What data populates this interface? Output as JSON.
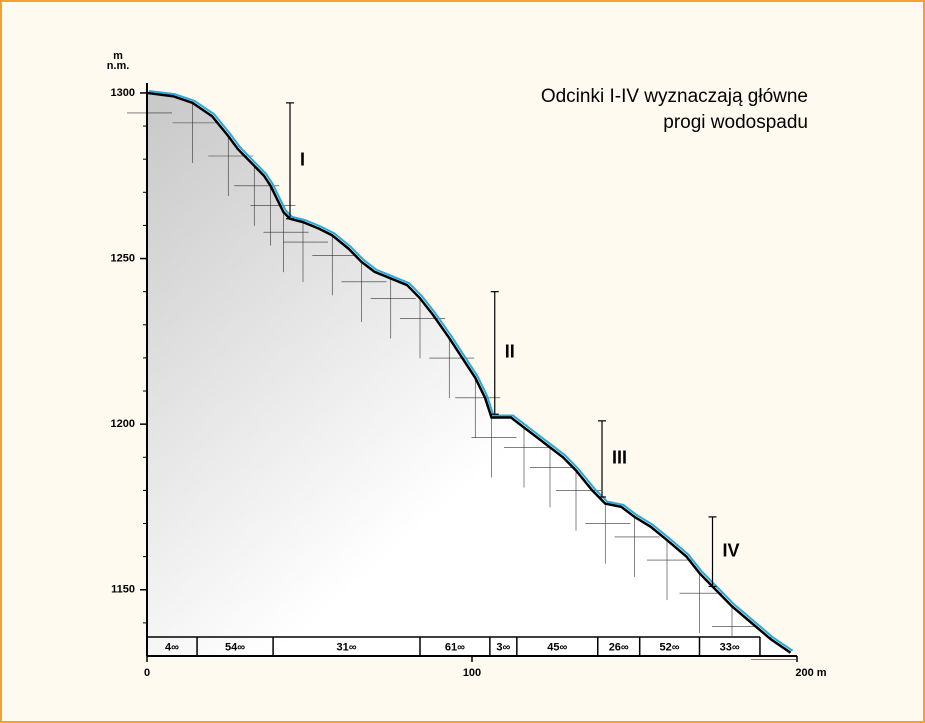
{
  "chart_data": {
    "type": "line",
    "annotation_lines": [
      "Odcinki I-IV wyznaczają główne",
      "progi wodospadu"
    ],
    "y_label_lines": [
      "m",
      "n.m."
    ],
    "x": [
      0,
      8,
      14,
      20,
      25,
      28,
      33,
      36,
      38,
      40,
      42,
      44,
      48,
      53,
      57,
      62,
      66,
      70,
      75,
      80,
      84,
      88,
      93,
      97,
      101,
      104,
      106,
      112,
      116,
      120,
      124,
      128,
      132,
      137,
      141,
      146,
      150,
      155,
      160,
      166,
      170,
      174,
      180,
      186,
      192,
      198
    ],
    "values": [
      1300,
      1299,
      1297,
      1293,
      1287,
      1283,
      1278,
      1275,
      1272,
      1268,
      1264,
      1262,
      1261,
      1259,
      1257,
      1253,
      1249,
      1246,
      1244,
      1242,
      1238,
      1233,
      1226,
      1220,
      1214,
      1208,
      1202,
      1202,
      1199,
      1196,
      1193,
      1190,
      1186,
      1180,
      1176,
      1175,
      1172,
      1169,
      1165,
      1160,
      1155,
      1151,
      1145,
      1140,
      1135,
      1131
    ],
    "color": "#000000",
    "water_color": "#29a9e0",
    "xlim": [
      0,
      200
    ],
    "ylim": [
      1130,
      1303
    ],
    "xticks": [
      0,
      100,
      {
        "value": 200,
        "label": "200 m"
      }
    ],
    "yticks": [
      1150,
      1200,
      1250,
      1300
    ],
    "yticks_minor": [
      1140,
      1160,
      1170,
      1180,
      1190,
      1210,
      1220,
      1230,
      1240,
      1260,
      1270,
      1280,
      1290
    ],
    "segments": [
      {
        "label": "I",
        "x": 44,
        "y": [
          1262,
          1297
        ]
      },
      {
        "label": "II",
        "x": 107,
        "y": [
          1203,
          1240
        ]
      },
      {
        "label": "III",
        "x": 140,
        "y": [
          1178,
          1201
        ]
      },
      {
        "label": "IV",
        "x": 174,
        "y": [
          1151,
          1172
        ]
      }
    ],
    "slope_band": {
      "edges": [
        0,
        15.4,
        38.8,
        84,
        105.5,
        113.8,
        138.7,
        151.6,
        170,
        188.6
      ],
      "labels": [
        "4∞",
        "54∞",
        "31∞",
        "61∞",
        "3∞",
        "45∞",
        "26∞",
        "52∞",
        "33∞"
      ]
    }
  }
}
